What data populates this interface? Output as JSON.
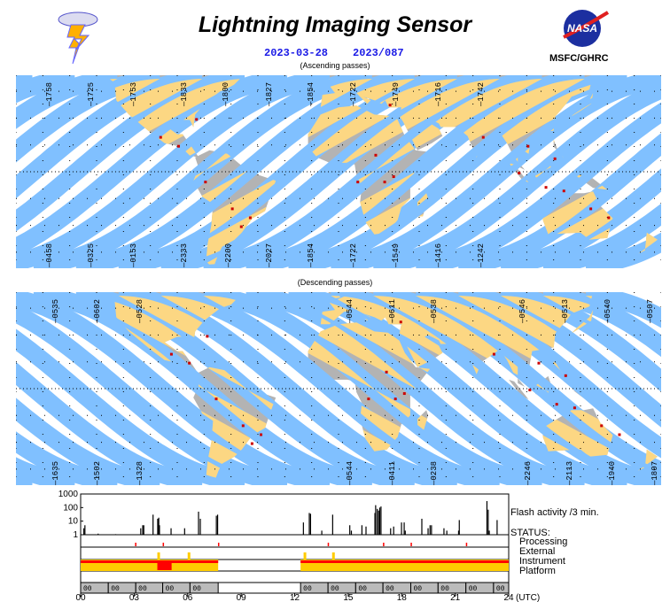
{
  "header": {
    "title": "Lightning Imaging Sensor",
    "date": "2023-03-28",
    "doy": "2023/087",
    "org": "MSFC/GHRC",
    "logo_text": "NASA",
    "ascending_caption": "(Ascending passes)",
    "descending_caption": "(Descending passes)"
  },
  "colors": {
    "land": "#b3b3b3",
    "swath": "#80c0ff",
    "swath_land": "#fcd783",
    "flash": "#cc0000",
    "date": "#1a1ae6",
    "instrument_ok": "#ffcc00",
    "instrument_err": "#ff0000"
  },
  "ascending": {
    "top_labels": [
      "1758",
      "1725",
      "1753",
      "1833",
      "1800",
      "1827",
      "1854",
      "1722",
      "1749",
      "1716",
      "1742"
    ],
    "bottom_labels": [
      "0458",
      "0325",
      "0153",
      "2333",
      "2200",
      "2027",
      "1854",
      "1722",
      "1549",
      "1416",
      "1242"
    ]
  },
  "descending": {
    "top_labels": [
      "0535",
      "0602",
      "0528",
      "0544",
      "0611",
      "0538",
      "0546",
      "0513",
      "0540",
      "0507"
    ],
    "bottom_labels": [
      "1635",
      "1502",
      "1328",
      "0544",
      "0411",
      "0238",
      "2246",
      "2113",
      "1940",
      "1807"
    ]
  },
  "chart_data": {
    "type": "bar",
    "title": "Flash activity /3 min.",
    "xlabel": "(UTC)",
    "x_ticks": [
      "00",
      "03",
      "06",
      "09",
      "12",
      "15",
      "18",
      "21",
      "24"
    ],
    "y_ticks": [
      "1000",
      "100",
      "10",
      "1"
    ],
    "ylim": [
      1,
      1000
    ],
    "yscale": "log",
    "xlim": [
      0,
      24
    ],
    "flash_bars": [
      [
        0.15,
        3
      ],
      [
        0.21,
        5
      ],
      [
        0.95,
        1.2
      ],
      [
        1.93,
        1.1
      ],
      [
        3.34,
        3
      ],
      [
        3.45,
        5
      ],
      [
        3.51,
        5
      ],
      [
        4.03,
        30
      ],
      [
        4.29,
        15
      ],
      [
        4.35,
        18
      ],
      [
        4.39,
        5
      ],
      [
        5.04,
        3
      ],
      [
        5.8,
        3
      ],
      [
        6.58,
        50
      ],
      [
        6.68,
        15
      ],
      [
        7.58,
        25
      ],
      [
        7.65,
        30
      ],
      [
        12.46,
        8
      ],
      [
        12.79,
        40
      ],
      [
        12.86,
        35
      ],
      [
        13.49,
        2
      ],
      [
        14.1,
        30
      ],
      [
        15.06,
        5
      ],
      [
        15.15,
        2
      ],
      [
        15.74,
        5
      ],
      [
        15.97,
        4
      ],
      [
        16.47,
        40
      ],
      [
        16.51,
        150
      ],
      [
        16.6,
        80
      ],
      [
        16.68,
        60
      ],
      [
        16.74,
        100
      ],
      [
        16.81,
        120
      ],
      [
        17.35,
        3
      ],
      [
        17.52,
        4
      ],
      [
        17.96,
        8
      ],
      [
        18.11,
        8
      ],
      [
        18.17,
        2
      ],
      [
        19.1,
        15
      ],
      [
        19.45,
        3
      ],
      [
        19.56,
        5
      ],
      [
        19.64,
        5
      ],
      [
        20.34,
        3
      ],
      [
        20.5,
        2
      ],
      [
        21.16,
        2
      ],
      [
        21.2,
        12
      ],
      [
        22.75,
        300
      ],
      [
        22.82,
        70
      ],
      [
        22.88,
        2
      ],
      [
        23.32,
        12
      ]
    ],
    "status_title": "STATUS:",
    "status_rows": [
      "Processing",
      "External",
      "Instrument",
      "Platform"
    ],
    "processing_marks": [
      3.05,
      4.6,
      7.7,
      13.85,
      16.95,
      18.5,
      21.6
    ],
    "instrument_on": [
      [
        0,
        7.71
      ],
      [
        12.33,
        24
      ]
    ],
    "orbit_segments": [
      [
        0,
        1.55
      ],
      [
        1.55,
        3.09
      ],
      [
        3.09,
        4.6
      ],
      [
        4.6,
        6.13
      ],
      [
        6.13,
        7.71
      ],
      [
        12.33,
        13.87
      ],
      [
        13.87,
        15.42
      ],
      [
        15.42,
        16.95
      ],
      [
        16.95,
        18.51
      ],
      [
        18.51,
        20.04
      ],
      [
        20.04,
        21.6
      ],
      [
        21.6,
        23.15
      ],
      [
        23.15,
        24
      ]
    ],
    "orbit_label": "00"
  }
}
